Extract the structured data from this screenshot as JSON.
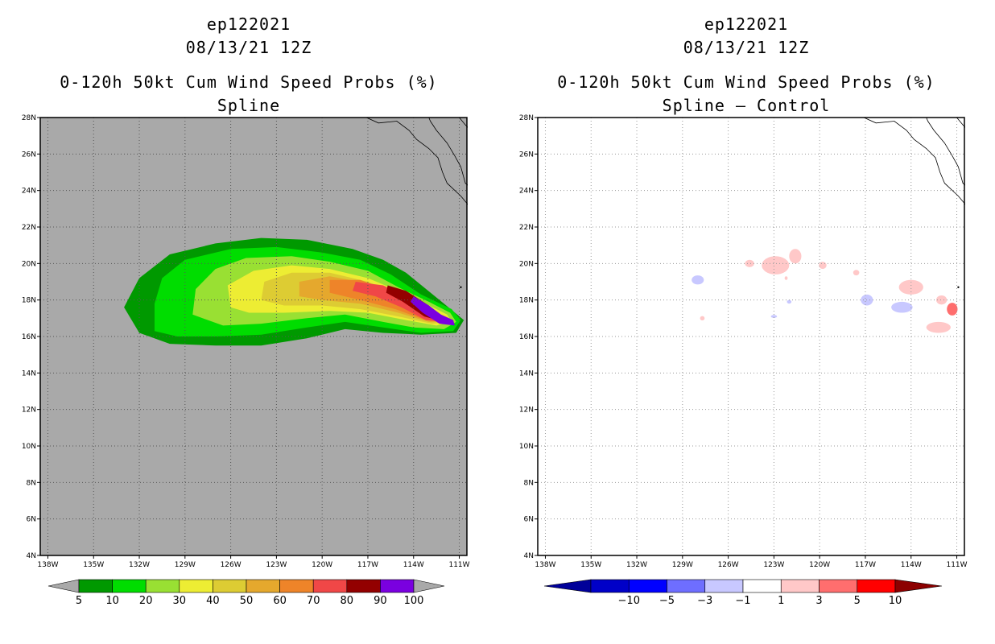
{
  "panels": [
    {
      "storm_id": "ep122021",
      "datetime": "08/13/21 12Z",
      "title": "0-120h 50kt Cum Wind Speed Probs (%)",
      "subtitle": "Spline",
      "background": "#a9a9a9"
    },
    {
      "storm_id": "ep122021",
      "datetime": "08/13/21 12Z",
      "title": "0-120h 50kt Cum Wind Speed Probs (%)",
      "subtitle": "Spline – Control",
      "background": "#ffffff"
    }
  ],
  "chart_data": [
    {
      "type": "contour-map",
      "title": "0-120h 50kt Cum Wind Speed Probs (%)",
      "subtitle": "Spline",
      "lon_range": [
        -138.5,
        -110.5
      ],
      "lat_range": [
        4,
        28
      ],
      "x_ticks": [
        "138W",
        "135W",
        "132W",
        "129W",
        "126W",
        "123W",
        "120W",
        "117W",
        "114W",
        "111W"
      ],
      "y_ticks": [
        "4N",
        "6N",
        "8N",
        "10N",
        "12N",
        "14N",
        "16N",
        "18N",
        "20N",
        "22N",
        "24N",
        "26N",
        "28N"
      ],
      "colorbar": {
        "labels": [
          "5",
          "10",
          "20",
          "30",
          "40",
          "50",
          "60",
          "70",
          "80",
          "90",
          "100"
        ],
        "colors": [
          "#009900",
          "#00dd00",
          "#99e033",
          "#eded33",
          "#ddcc33",
          "#e5a82d",
          "#ee8429",
          "#f04747",
          "#930000",
          "#7a00e0"
        ],
        "end_colors": [
          "#a9a9a9",
          "#a9a9a9"
        ]
      },
      "contours": [
        {
          "level": 5,
          "color": "#009900",
          "points": [
            [
              -132,
              16.2
            ],
            [
              -133,
              17.6
            ],
            [
              -132,
              19.2
            ],
            [
              -130,
              20.5
            ],
            [
              -127,
              21.1
            ],
            [
              -124,
              21.4
            ],
            [
              -121,
              21.3
            ],
            [
              -118,
              20.8
            ],
            [
              -116,
              20.2
            ],
            [
              -114.5,
              19.5
            ],
            [
              -112,
              17.8
            ],
            [
              -110.7,
              16.9
            ],
            [
              -111.2,
              16.2
            ],
            [
              -113.5,
              16.1
            ],
            [
              -116,
              16.2
            ],
            [
              -118.5,
              16.4
            ],
            [
              -121,
              15.9
            ],
            [
              -124,
              15.5
            ],
            [
              -127,
              15.5
            ],
            [
              -130,
              15.6
            ]
          ]
        },
        {
          "level": 10,
          "color": "#00dd00",
          "points": [
            [
              -131,
              16.3
            ],
            [
              -131,
              17.8
            ],
            [
              -130.5,
              19.2
            ],
            [
              -129,
              20.2
            ],
            [
              -126,
              20.8
            ],
            [
              -123,
              20.9
            ],
            [
              -120,
              20.6
            ],
            [
              -117.5,
              20.2
            ],
            [
              -115.5,
              19.4
            ],
            [
              -113.5,
              18.3
            ],
            [
              -111.5,
              17.5
            ],
            [
              -110.9,
              16.9
            ],
            [
              -111.4,
              16.3
            ],
            [
              -113.5,
              16.2
            ],
            [
              -116,
              16.5
            ],
            [
              -118.5,
              16.8
            ],
            [
              -121,
              16.5
            ],
            [
              -124,
              16.1
            ],
            [
              -127,
              16.0
            ],
            [
              -129.5,
              16.0
            ]
          ]
        },
        {
          "level": 20,
          "color": "#99e033",
          "points": [
            [
              -128.5,
              17.2
            ],
            [
              -128.3,
              18.6
            ],
            [
              -127,
              19.7
            ],
            [
              -125,
              20.3
            ],
            [
              -122,
              20.4
            ],
            [
              -119.5,
              20.1
            ],
            [
              -117,
              19.6
            ],
            [
              -115,
              18.7
            ],
            [
              -113,
              17.9
            ],
            [
              -111.6,
              17.3
            ],
            [
              -111.2,
              16.8
            ],
            [
              -112,
              16.4
            ],
            [
              -114,
              16.5
            ],
            [
              -116,
              16.8
            ],
            [
              -118.5,
              17.2
            ],
            [
              -121,
              17.0
            ],
            [
              -124,
              16.7
            ],
            [
              -126.5,
              16.6
            ]
          ]
        },
        {
          "level": 30,
          "color": "#eded33",
          "points": [
            [
              -126,
              17.6
            ],
            [
              -126.2,
              18.8
            ],
            [
              -124.5,
              19.6
            ],
            [
              -122,
              19.9
            ],
            [
              -119.5,
              19.7
            ],
            [
              -117,
              19.2
            ],
            [
              -115,
              18.5
            ],
            [
              -113.2,
              17.8
            ],
            [
              -111.8,
              17.2
            ],
            [
              -111.5,
              16.8
            ],
            [
              -112.5,
              16.6
            ],
            [
              -114.5,
              16.9
            ],
            [
              -117,
              17.3
            ],
            [
              -119.5,
              17.4
            ],
            [
              -122.5,
              17.3
            ],
            [
              -124.8,
              17.3
            ]
          ]
        },
        {
          "level": 40,
          "color": "#ddcc33",
          "points": [
            [
              -124,
              18.0
            ],
            [
              -123.8,
              19.0
            ],
            [
              -122,
              19.5
            ],
            [
              -119.5,
              19.5
            ],
            [
              -117,
              19.0
            ],
            [
              -115,
              18.3
            ],
            [
              -113.3,
              17.7
            ],
            [
              -112,
              17.1
            ],
            [
              -111.7,
              16.8
            ],
            [
              -112.8,
              16.7
            ],
            [
              -115,
              17.1
            ],
            [
              -117.5,
              17.5
            ],
            [
              -120,
              17.7
            ],
            [
              -122.5,
              17.7
            ]
          ]
        },
        {
          "level": 50,
          "color": "#e5a82d",
          "points": [
            [
              -121.5,
              18.2
            ],
            [
              -121.5,
              19.0
            ],
            [
              -119.5,
              19.3
            ],
            [
              -117.5,
              19.0
            ],
            [
              -115.5,
              18.4
            ],
            [
              -113.5,
              17.6
            ],
            [
              -112.2,
              17.1
            ],
            [
              -111.9,
              16.8
            ],
            [
              -113,
              16.8
            ],
            [
              -115,
              17.3
            ],
            [
              -117.5,
              17.8
            ],
            [
              -120,
              18.0
            ]
          ]
        },
        {
          "level": 60,
          "color": "#ee8429",
          "points": [
            [
              -119.5,
              18.4
            ],
            [
              -119.5,
              19.1
            ],
            [
              -117.5,
              19.1
            ],
            [
              -115.5,
              18.5
            ],
            [
              -113.5,
              17.6
            ],
            [
              -112.3,
              17.1
            ],
            [
              -112,
              16.8
            ],
            [
              -113.2,
              16.9
            ],
            [
              -115.2,
              17.5
            ],
            [
              -117.5,
              18.0
            ]
          ]
        },
        {
          "level": 70,
          "color": "#f04747",
          "points": [
            [
              -118,
              18.5
            ],
            [
              -117.8,
              19.0
            ],
            [
              -116,
              18.8
            ],
            [
              -114.5,
              18.2
            ],
            [
              -113,
              17.5
            ],
            [
              -112.2,
              17.0
            ],
            [
              -112,
              16.8
            ],
            [
              -113.2,
              16.9
            ],
            [
              -114.8,
              17.6
            ],
            [
              -116.5,
              18.2
            ]
          ]
        },
        {
          "level": 80,
          "color": "#930000",
          "points": [
            [
              -115.8,
              18.4
            ],
            [
              -115.7,
              18.8
            ],
            [
              -114.5,
              18.5
            ],
            [
              -113,
              17.7
            ],
            [
              -112.1,
              17.1
            ],
            [
              -112,
              16.8
            ],
            [
              -113.3,
              17.1
            ],
            [
              -114.7,
              17.9
            ]
          ]
        },
        {
          "level": 90,
          "color": "#7a00e0",
          "points": [
            [
              -114.2,
              17.9
            ],
            [
              -114,
              18.2
            ],
            [
              -113,
              17.7
            ],
            [
              -112.2,
              17.2
            ],
            [
              -111.4,
              16.9
            ],
            [
              -111.3,
              16.6
            ],
            [
              -112.3,
              16.7
            ],
            [
              -113.4,
              17.3
            ]
          ]
        }
      ]
    },
    {
      "type": "contour-map",
      "title": "0-120h 50kt Cum Wind Speed Probs (%)",
      "subtitle": "Spline – Control",
      "lon_range": [
        -138.5,
        -110.5
      ],
      "lat_range": [
        4,
        28
      ],
      "x_ticks": [
        "138W",
        "135W",
        "132W",
        "129W",
        "126W",
        "123W",
        "120W",
        "117W",
        "114W",
        "111W"
      ],
      "y_ticks": [
        "4N",
        "6N",
        "8N",
        "10N",
        "12N",
        "14N",
        "16N",
        "18N",
        "20N",
        "22N",
        "24N",
        "26N",
        "28N"
      ],
      "colorbar": {
        "labels": [
          "−10",
          "−5",
          "−3",
          "−1",
          "1",
          "3",
          "5",
          "10"
        ],
        "colors": [
          "#0000c8",
          "#0000ff",
          "#6e6eff",
          "#c8c8ff",
          "#ffffff",
          "#ffc8c8",
          "#ff6e6e",
          "#ff0000"
        ],
        "end_colors": [
          "#000099",
          "#8c0000"
        ]
      },
      "anomalies": [
        {
          "lon": -122.9,
          "lat": 19.9,
          "rx": 0.9,
          "ry": 0.5,
          "color": "#ffc8c8"
        },
        {
          "lon": -121.6,
          "lat": 20.4,
          "rx": 0.4,
          "ry": 0.4,
          "color": "#ffc8c8"
        },
        {
          "lon": -124.6,
          "lat": 20.0,
          "rx": 0.3,
          "ry": 0.2,
          "color": "#ffc8c8"
        },
        {
          "lon": -119.8,
          "lat": 19.9,
          "rx": 0.25,
          "ry": 0.2,
          "color": "#ffc8c8"
        },
        {
          "lon": -117.6,
          "lat": 19.5,
          "rx": 0.2,
          "ry": 0.15,
          "color": "#ffc8c8"
        },
        {
          "lon": -114.0,
          "lat": 18.7,
          "rx": 0.8,
          "ry": 0.4,
          "color": "#ffc8c8"
        },
        {
          "lon": -112.0,
          "lat": 18.0,
          "rx": 0.35,
          "ry": 0.25,
          "color": "#ffc8c8"
        },
        {
          "lon": -111.3,
          "lat": 17.5,
          "rx": 0.35,
          "ry": 0.35,
          "color": "#ff6e6e"
        },
        {
          "lon": -112.2,
          "lat": 16.5,
          "rx": 0.8,
          "ry": 0.3,
          "color": "#ffc8c8"
        },
        {
          "lon": -127.7,
          "lat": 17.0,
          "rx": 0.15,
          "ry": 0.12,
          "color": "#ffc8c8"
        },
        {
          "lon": -122.2,
          "lat": 19.2,
          "rx": 0.1,
          "ry": 0.1,
          "color": "#ffc8c8"
        },
        {
          "lon": -128.0,
          "lat": 19.1,
          "rx": 0.4,
          "ry": 0.25,
          "color": "#c8c8ff"
        },
        {
          "lon": -116.9,
          "lat": 18.0,
          "rx": 0.4,
          "ry": 0.3,
          "color": "#c8c8ff"
        },
        {
          "lon": -114.6,
          "lat": 17.6,
          "rx": 0.7,
          "ry": 0.3,
          "color": "#c8c8ff"
        },
        {
          "lon": -122.0,
          "lat": 17.9,
          "rx": 0.15,
          "ry": 0.1,
          "color": "#c8c8ff"
        },
        {
          "lon": -123.0,
          "lat": 17.1,
          "rx": 0.2,
          "ry": 0.08,
          "color": "#c8c8ff"
        }
      ]
    }
  ]
}
